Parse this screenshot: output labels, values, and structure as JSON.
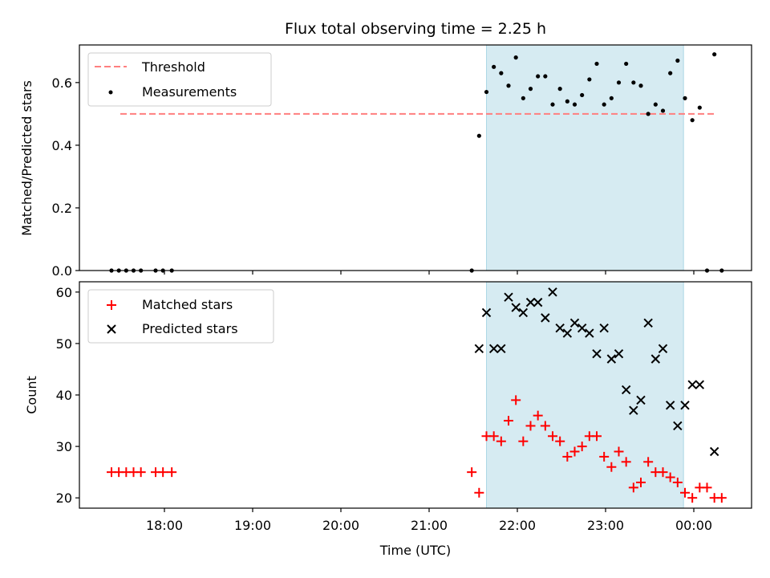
{
  "chart_data": [
    {
      "type": "scatter",
      "title": "Flux total observing time = 2.25 h",
      "ylabel": "Matched/Predicted stars",
      "xlabel": "",
      "ylim": [
        0,
        0.72
      ],
      "y_ticks": [
        0.0,
        0.2,
        0.4,
        0.6
      ],
      "y_tick_labels": [
        "0.0",
        "0.2",
        "0.4",
        "0.6"
      ],
      "x_tick_labels_shown": false,
      "legend_position": "top-left",
      "shaded_interval": {
        "start": "21:39",
        "end": "23:53",
        "color": "#add8e6"
      },
      "threshold": {
        "name": "Threshold",
        "value": 0.5,
        "x_start": "17:30",
        "x_end": "00:15",
        "color": "#ff7f7f"
      },
      "series": [
        {
          "name": "Measurements",
          "marker": "dot",
          "color": "#000000",
          "x": [
            "17:24",
            "17:29",
            "17:34",
            "17:39",
            "17:44",
            "17:54",
            "17:59",
            "18:05",
            "21:29",
            "21:34",
            "21:39",
            "21:44",
            "21:49",
            "21:54",
            "21:59",
            "22:04",
            "22:09",
            "22:14",
            "22:19",
            "22:24",
            "22:29",
            "22:34",
            "22:39",
            "22:44",
            "22:49",
            "22:54",
            "22:59",
            "23:04",
            "23:09",
            "23:14",
            "23:19",
            "23:24",
            "23:29",
            "23:34",
            "23:39",
            "23:44",
            "23:49",
            "23:54",
            "23:59",
            "00:04",
            "00:09",
            "00:14",
            "00:19"
          ],
          "y": [
            0,
            0,
            0,
            0,
            0,
            0,
            0,
            0,
            0,
            0.43,
            0.57,
            0.65,
            0.63,
            0.59,
            0.68,
            0.55,
            0.58,
            0.62,
            0.62,
            0.53,
            0.58,
            0.54,
            0.53,
            0.56,
            0.61,
            0.66,
            0.53,
            0.55,
            0.6,
            0.66,
            0.6,
            0.59,
            0.5,
            0.53,
            0.51,
            0.63,
            0.67,
            0.55,
            0.48,
            0.52,
            0,
            0.69,
            0
          ]
        }
      ]
    },
    {
      "type": "scatter",
      "title": "",
      "ylabel": "Count",
      "xlabel": "Time (UTC)",
      "ylim": [
        18,
        62
      ],
      "y_ticks": [
        20,
        30,
        40,
        50,
        60
      ],
      "y_tick_labels": [
        "20",
        "30",
        "40",
        "50",
        "60"
      ],
      "x_ticks": [
        "18:00",
        "19:00",
        "20:00",
        "21:00",
        "22:00",
        "23:00",
        "00:00"
      ],
      "x_tick_labels": [
        "18:00",
        "19:00",
        "20:00",
        "21:00",
        "22:00",
        "23:00",
        "00:00"
      ],
      "legend_position": "top-left",
      "shaded_interval": {
        "start": "21:39",
        "end": "23:53",
        "color": "#add8e6"
      },
      "series": [
        {
          "name": "Matched stars",
          "marker": "plus",
          "color": "#ff0000",
          "x": [
            "17:24",
            "17:29",
            "17:34",
            "17:39",
            "17:44",
            "17:54",
            "17:59",
            "18:05",
            "21:29",
            "21:34",
            "21:39",
            "21:44",
            "21:49",
            "21:54",
            "21:59",
            "22:04",
            "22:09",
            "22:14",
            "22:19",
            "22:24",
            "22:29",
            "22:34",
            "22:39",
            "22:44",
            "22:49",
            "22:54",
            "22:59",
            "23:04",
            "23:09",
            "23:14",
            "23:19",
            "23:24",
            "23:29",
            "23:34",
            "23:39",
            "23:44",
            "23:49",
            "23:54",
            "23:59",
            "00:04",
            "00:09",
            "00:14",
            "00:19"
          ],
          "y": [
            25,
            25,
            25,
            25,
            25,
            25,
            25,
            25,
            25,
            21,
            32,
            32,
            31,
            35,
            39,
            31,
            34,
            36,
            34,
            32,
            31,
            28,
            29,
            30,
            32,
            32,
            28,
            26,
            29,
            27,
            22,
            23,
            27,
            25,
            25,
            24,
            23,
            21,
            20,
            22,
            22,
            20,
            20
          ]
        },
        {
          "name": "Predicted stars",
          "marker": "x",
          "color": "#000000",
          "x": [
            "21:34",
            "21:39",
            "21:44",
            "21:49",
            "21:54",
            "21:59",
            "22:04",
            "22:09",
            "22:14",
            "22:19",
            "22:24",
            "22:29",
            "22:34",
            "22:39",
            "22:44",
            "22:49",
            "22:54",
            "22:59",
            "23:04",
            "23:09",
            "23:14",
            "23:19",
            "23:24",
            "23:29",
            "23:34",
            "23:39",
            "23:44",
            "23:49",
            "23:54",
            "23:59",
            "00:04",
            "00:14"
          ],
          "y": [
            49,
            56,
            49,
            49,
            59,
            57,
            56,
            58,
            58,
            55,
            60,
            53,
            52,
            54,
            53,
            52,
            48,
            53,
            47,
            48,
            41,
            37,
            39,
            54,
            47,
            49,
            38,
            34,
            38,
            42,
            42,
            29
          ]
        }
      ]
    }
  ]
}
